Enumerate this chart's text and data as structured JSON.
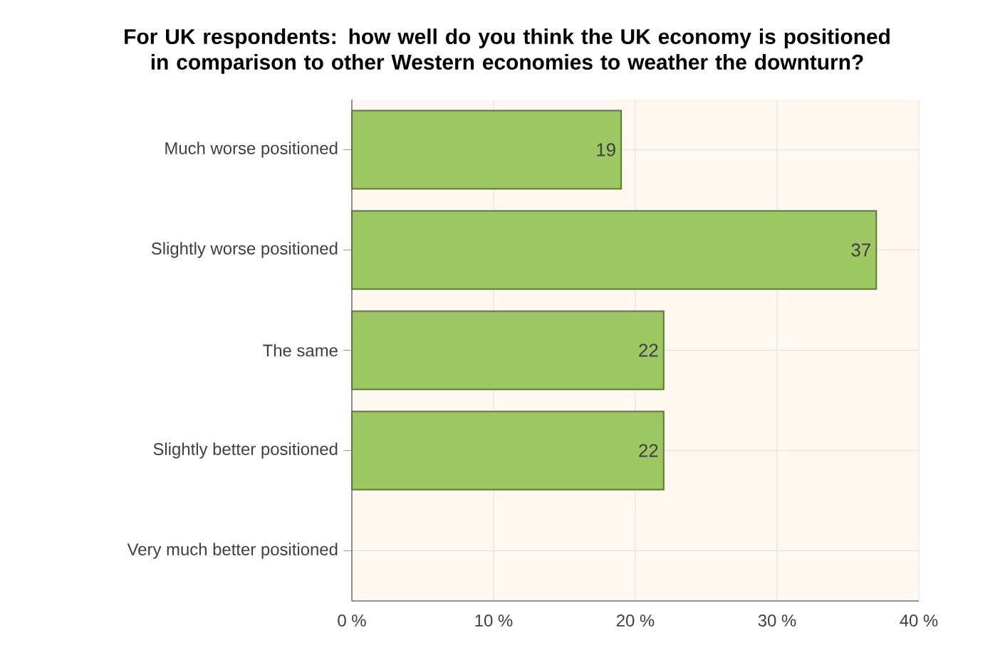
{
  "chart_data": {
    "type": "bar",
    "orientation": "horizontal",
    "title": "For UK respondents: how well do you think the UK economy is positioned in comparison to other Western economies to weather the downturn?",
    "categories": [
      "Much worse positioned",
      "Slightly worse positioned",
      "The same",
      "Slightly better positioned",
      "Very much better positioned"
    ],
    "values": [
      19,
      37,
      22,
      22,
      0
    ],
    "value_labels": [
      "19",
      "37",
      "22",
      "22",
      null
    ],
    "color": "#9cc762",
    "xlim": [
      0,
      40
    ],
    "xticks": [
      {
        "value": 0,
        "label": "0 %"
      },
      {
        "value": 10,
        "label": "10 %"
      },
      {
        "value": 20,
        "label": "20 %"
      },
      {
        "value": 30,
        "label": "30 %"
      },
      {
        "value": 40,
        "label": "40 %"
      }
    ],
    "grid": true
  }
}
